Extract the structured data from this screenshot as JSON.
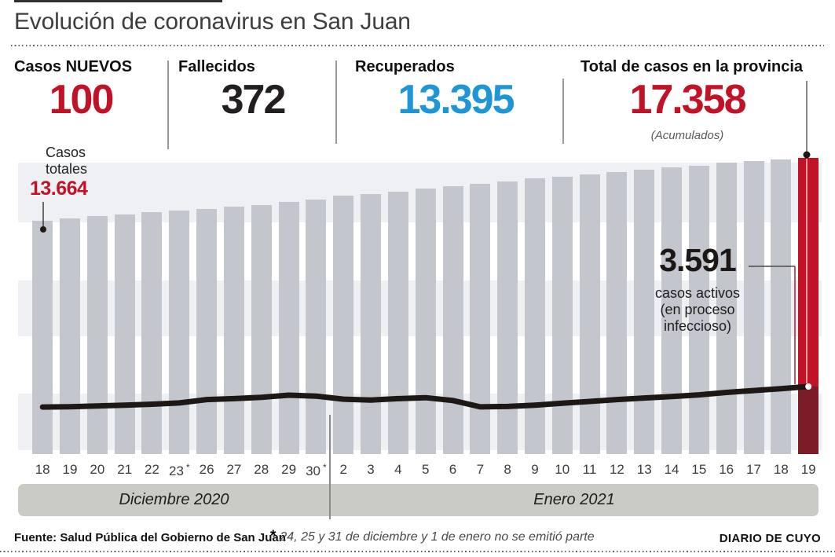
{
  "header": {
    "title": "Evolución de coronavirus en San Juan"
  },
  "stats": {
    "items": [
      {
        "label": "Casos NUEVOS",
        "value": "100",
        "color": "#c01328"
      },
      {
        "label": "Fallecidos",
        "value": "372",
        "color": "#231f20"
      },
      {
        "label": "Recuperados",
        "value": "13.395",
        "color": "#1e95d4"
      },
      {
        "label": "Total de casos en la provincia",
        "value": "17.358",
        "sub": "(Acumulados)",
        "color": "#c01328"
      }
    ]
  },
  "annotations": {
    "first_bar": {
      "line1": "Casos",
      "line2": "totales",
      "value": "13.664"
    },
    "active": {
      "value": "3.591",
      "line1": "casos activos",
      "line2": "(en proceso",
      "line3": "infeccioso)"
    }
  },
  "chart_data": {
    "type": "bar",
    "categories": [
      "18",
      "19",
      "20",
      "21",
      "22",
      "23 *",
      "26",
      "27",
      "28",
      "29",
      "30 *",
      "2",
      "3",
      "4",
      "5",
      "6",
      "7",
      "8",
      "9",
      "10",
      "11",
      "12",
      "13",
      "14",
      "15",
      "16",
      "17",
      "18",
      "19"
    ],
    "series": [
      {
        "name": "Casos totales (acumulados)",
        "type": "bar",
        "values": [
          13664,
          13820,
          13940,
          14050,
          14170,
          14260,
          14375,
          14490,
          14605,
          14765,
          14925,
          15135,
          15225,
          15365,
          15550,
          15685,
          15825,
          15960,
          16125,
          16260,
          16375,
          16535,
          16650,
          16790,
          16905,
          17045,
          17160,
          17258,
          17358
        ]
      },
      {
        "name": "Casos activos (en proceso infeccioso)",
        "type": "line",
        "values": [
          2500,
          2520,
          2560,
          2600,
          2650,
          2720,
          2900,
          2950,
          3020,
          3130,
          3080,
          2920,
          2870,
          2950,
          3000,
          2850,
          2510,
          2530,
          2600,
          2700,
          2800,
          2900,
          2980,
          3060,
          3150,
          3280,
          3380,
          3480,
          3591
        ]
      }
    ],
    "labeled_values": {
      "first_bar_total": 13664,
      "last_bar_total": 17358,
      "last_active": 3591
    },
    "x_groups": [
      {
        "label": "Diciembre 2020",
        "from": "18",
        "to": "30 *"
      },
      {
        "label": "Enero 2021",
        "from": "2",
        "to": "19"
      }
    ],
    "highlight_last_bar": true,
    "ylim": [
      0,
      17800
    ],
    "grid": "horizontal-bands",
    "legend_position": "none"
  },
  "periods": {
    "december": "Diciembre 2020",
    "january": "Enero 2021"
  },
  "footer": {
    "source": "Fuente: Salud Pública del Gobierno de San Juan",
    "note_mark": "*",
    "note": "24, 25 y 31 de diciembre y 1 de enero no se emitió parte",
    "credit": "DIARIO DE CUYO"
  },
  "colors": {
    "accent_red": "#c01328",
    "dark_red": "#7c1c28",
    "blue": "#1e95d4",
    "bar_gray": "#c4c6cd",
    "stripe_gray": "#eef0f3",
    "band_gray": "#cbcbc5",
    "trend_line": "#1d1816"
  }
}
